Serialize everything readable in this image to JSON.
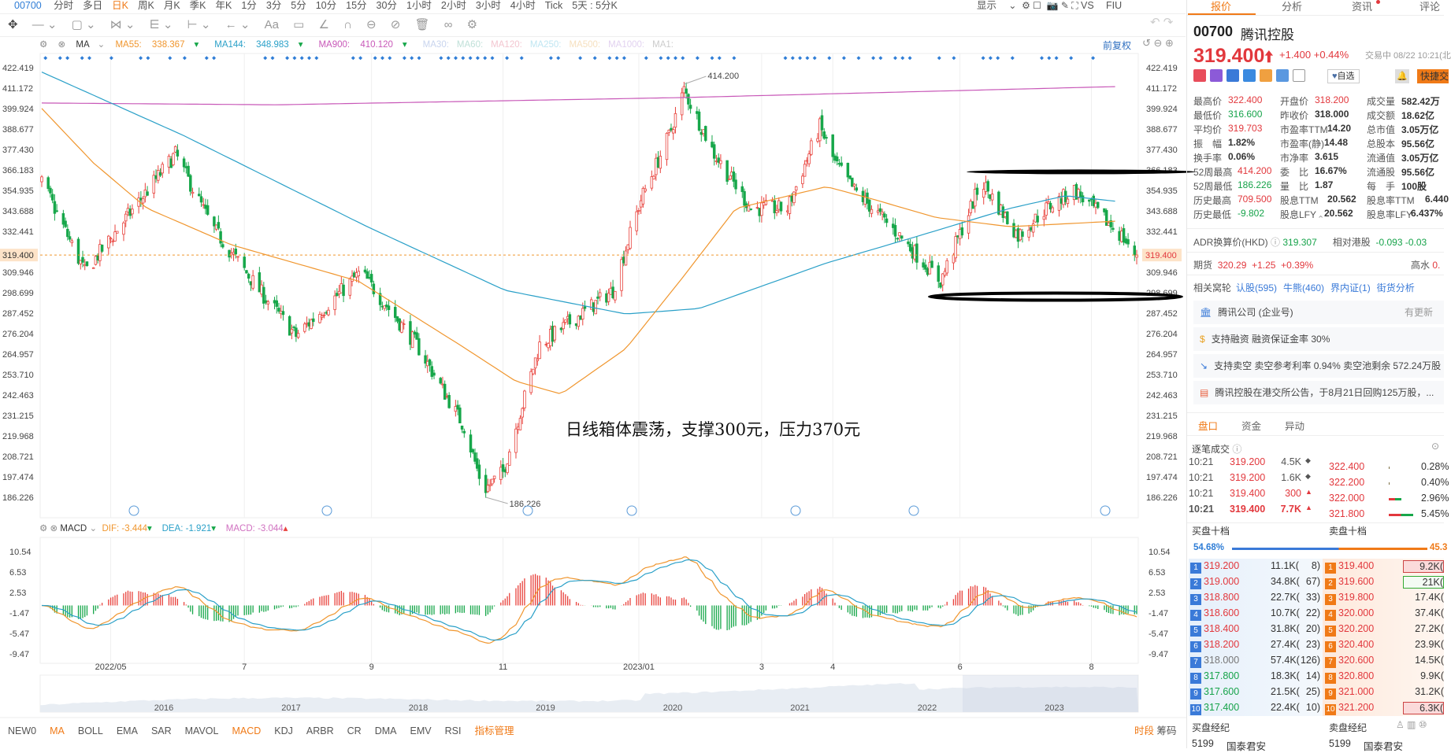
{
  "topbar": {
    "code": "00700",
    "periods": [
      "分时",
      "多日",
      "日K",
      "周K",
      "月K",
      "季K",
      "年K",
      "1分",
      "3分",
      "5分",
      "10分",
      "15分",
      "30分",
      "1小时",
      "2小时",
      "3小时",
      "4小时",
      "Tick",
      "5天 : 5分K"
    ],
    "active": "日K",
    "right": [
      "显示",
      "VS",
      "FIU"
    ]
  },
  "ma_legend": {
    "label": "MA",
    "items": [
      {
        "name": "MA55:",
        "value": "338.367",
        "color": "#f0962e"
      },
      {
        "name": "MA144:",
        "value": "348.983",
        "color": "#2aa0c8"
      },
      {
        "name": "MA900:",
        "value": "410.120",
        "color": "#c858b8"
      }
    ],
    "inactive": [
      "MA30:",
      "MA60:",
      "MA120:",
      "MA250:",
      "MA500:",
      "MA1000:",
      "MA1:"
    ],
    "adjust": "前复权"
  },
  "price_axis": [
    "422.419",
    "411.172",
    "399.924",
    "388.677",
    "377.430",
    "366.183",
    "354.935",
    "343.688",
    "332.441",
    "309.946",
    "298.699",
    "287.452",
    "276.204",
    "264.957",
    "253.710",
    "242.463",
    "231.215",
    "219.968",
    "208.721",
    "197.474",
    "186.226"
  ],
  "current_price_label": "319.400",
  "high_marker": "414.200",
  "low_marker": "186.226",
  "annotation": "日线箱体震荡，支撑300元，压力370元",
  "colors": {
    "up": "#e8413b",
    "down": "#17a74a",
    "ma55": "#f0962e",
    "ma144": "#2aa0c8",
    "ma900": "#c858b8"
  },
  "kline": {
    "start": "2022-04-01",
    "end": "2023-08-22",
    "last": 319.4,
    "path": [
      [
        "2022-04-01",
        360
      ],
      [
        "2022-04-21",
        310
      ],
      [
        "2022-06-02",
        375
      ],
      [
        "2022-06-19",
        335
      ],
      [
        "2022-07-11",
        300
      ],
      [
        "2022-07-28",
        275
      ],
      [
        "2022-08-27",
        310
      ],
      [
        "2022-09-22",
        270
      ],
      [
        "2022-10-14",
        225
      ],
      [
        "2022-10-23",
        190
      ],
      [
        "2022-11-01",
        200
      ],
      [
        "2022-11-18",
        270
      ],
      [
        "2022-12-05",
        285
      ],
      [
        "2022-12-22",
        300
      ],
      [
        "2023-01-04",
        350
      ],
      [
        "2023-01-17",
        385
      ],
      [
        "2023-01-24",
        410
      ],
      [
        "2023-02-07",
        375
      ],
      [
        "2023-02-24",
        345
      ],
      [
        "2023-03-13",
        345
      ],
      [
        "2023-03-28",
        390
      ],
      [
        "2023-04-04",
        370
      ],
      [
        "2023-04-13",
        355
      ],
      [
        "2023-05-04",
        330
      ],
      [
        "2023-05-23",
        305
      ],
      [
        "2023-06-11",
        360
      ],
      [
        "2023-06-28",
        330
      ],
      [
        "2023-07-11",
        345
      ],
      [
        "2023-07-24",
        355
      ],
      [
        "2023-08-15",
        330
      ],
      [
        "2023-08-22",
        319.4
      ]
    ],
    "ma900": [
      [
        "2022-04-01",
        403
      ],
      [
        "2022-07-19",
        402
      ],
      [
        "2023-01-24",
        406
      ],
      [
        "2023-08-12",
        412
      ]
    ],
    "ma144": [
      [
        "2022-04-01",
        420
      ],
      [
        "2022-06-06",
        385
      ],
      [
        "2022-08-30",
        335
      ],
      [
        "2022-11-02",
        300
      ],
      [
        "2022-12-28",
        287
      ],
      [
        "2023-01-31",
        290
      ],
      [
        "2023-03-31",
        315
      ],
      [
        "2023-05-13",
        330
      ],
      [
        "2023-06-24",
        345
      ],
      [
        "2023-07-20",
        352
      ],
      [
        "2023-08-12",
        349
      ]
    ],
    "ma55": [
      [
        "2022-04-01",
        400
      ],
      [
        "2022-04-25",
        370
      ],
      [
        "2022-05-20",
        345
      ],
      [
        "2022-06-28",
        325
      ],
      [
        "2022-08-26",
        305
      ],
      [
        "2022-10-12",
        270
      ],
      [
        "2022-11-07",
        250
      ],
      [
        "2022-11-28",
        243
      ],
      [
        "2022-12-28",
        268
      ],
      [
        "2023-01-22",
        305
      ],
      [
        "2023-02-17",
        345
      ],
      [
        "2023-03-31",
        357
      ],
      [
        "2023-04-22",
        350
      ],
      [
        "2023-05-21",
        340
      ],
      [
        "2023-06-24",
        335
      ],
      [
        "2023-08-12",
        338
      ]
    ],
    "box": {
      "resistance": 366,
      "support": 300
    }
  },
  "date_axis": [
    [
      "2022/05",
      "2022-05-03"
    ],
    [
      "7",
      "2022-07-04"
    ],
    [
      "9",
      "2022-09-01"
    ],
    [
      "11",
      "2022-11-01"
    ],
    [
      "2023/01",
      "2023-01-03"
    ],
    [
      "3",
      "2023-03-01"
    ],
    [
      "4",
      "2023-04-03"
    ],
    [
      "6",
      "2023-06-01"
    ],
    [
      "8",
      "2023-08-01"
    ]
  ],
  "macd": {
    "label": "MACD",
    "dif": "-3.444",
    "dea": "-1.921",
    "macd": "-3.044",
    "axis": [
      "10.54",
      "6.53",
      "2.53",
      "-1.47",
      "-5.47",
      "-9.47"
    ],
    "dif_label": "DIF:",
    "dea_label": "DEA:",
    "macd_label": "MACD:"
  },
  "navigator_years": [
    "2016",
    "2017",
    "2018",
    "2019",
    "2020",
    "2021",
    "2022",
    "2023"
  ],
  "bottom_tabs": [
    "NEW0",
    "MA",
    "BOLL",
    "EMA",
    "SAR",
    "MAVOL",
    "MACD",
    "KDJ",
    "ARBR",
    "CR",
    "DMA",
    "EMV",
    "RSI",
    "指标管理"
  ],
  "bottom_active": [
    "MA",
    "MACD",
    "指标管理"
  ],
  "bottom_right": [
    "时段",
    "筹码"
  ],
  "panel": {
    "tabs": [
      "报价",
      "分析",
      "资讯",
      "评论"
    ],
    "code": "00700",
    "name": "腾讯控股",
    "price": "319.400",
    "change": "+1.400",
    "pct": "+0.44%",
    "status": "交易中 08/22 10:21(北",
    "watch": "自选",
    "quick": "快捷交",
    "stats": [
      [
        [
          "最高价",
          "322.400",
          "red"
        ],
        [
          "开盘价",
          "318.200",
          "red"
        ],
        [
          "成交量",
          "582.42万",
          "b"
        ]
      ],
      [
        [
          "最低价",
          "316.600",
          "green"
        ],
        [
          "昨收价",
          "318.000",
          ""
        ],
        [
          "成交额",
          "18.62亿",
          "b"
        ]
      ],
      [
        [
          "平均价",
          "319.703",
          "red"
        ],
        [
          "市盈率TTM",
          "14.20",
          "b"
        ],
        [
          "总市值",
          "3.05万亿",
          "b"
        ]
      ],
      [
        [
          "振　幅",
          "1.82%",
          "b"
        ],
        [
          "市盈率(静)",
          "14.48",
          "b"
        ],
        [
          "总股本",
          "95.56亿",
          "b"
        ]
      ],
      [
        [
          "换手率",
          "0.06%",
          "b"
        ],
        [
          "市净率",
          "3.615",
          "b"
        ],
        [
          "流通值",
          "3.05万亿",
          "b"
        ]
      ],
      [
        [
          "52周最高",
          "414.200",
          "red"
        ],
        [
          "委　比",
          "16.67%",
          "b"
        ],
        [
          "流通股",
          "95.56亿",
          "b"
        ]
      ],
      [
        [
          "52周最低",
          "186.226",
          "green"
        ],
        [
          "量　比",
          "1.87",
          "b"
        ],
        [
          "每　手",
          "100股",
          "b"
        ]
      ],
      [
        [
          "历史最高",
          "709.500",
          "red"
        ],
        [
          "股息TTM",
          "20.562",
          "b"
        ],
        [
          "股息率TTM",
          "6.440",
          "b"
        ]
      ],
      [
        [
          "历史最低",
          "-9.802",
          "green"
        ],
        [
          "股息LFY",
          "20.562",
          "b"
        ],
        [
          "股息率LFY",
          "6.437%",
          "b"
        ]
      ]
    ],
    "adr": {
      "label": "ADR换算价(HKD)",
      "value": "319.307",
      "rel_label": "相对港股",
      "rel": "-0.093",
      "rel_pct": "-0.03"
    },
    "futures": {
      "label": "期货",
      "value": "320.29",
      "chg": "+1.25",
      "pct": "+0.39%",
      "premium_label": "高水",
      "premium": "0."
    },
    "warrants": {
      "label": "相关窝轮",
      "links": [
        "认股(595)",
        "牛熊(460)",
        "界内证(1)",
        "街货分析"
      ]
    },
    "cards": [
      {
        "text": "腾讯公司 (企业号)",
        "extra": "有更新"
      },
      {
        "text": "支持融资 融资保证金率 30%"
      },
      {
        "text": "支持卖空 卖空参考利率 0.94% 卖空池剩余 572.24万股"
      },
      {
        "text": "腾讯控股在港交所公告，于8月21日回购125万股，..."
      }
    ],
    "sub_tabs": [
      "盘口",
      "资金",
      "异动"
    ],
    "ticks_title": "逐笔成交",
    "ticks": [
      [
        "10:21",
        "319.200",
        "4.5K",
        "◆"
      ],
      [
        "10:21",
        "319.200",
        "1.6K",
        "◆"
      ],
      [
        "10:21",
        "319.400",
        "300",
        "▲"
      ],
      [
        "10:21",
        "319.400",
        "7.7K",
        "▲"
      ]
    ],
    "dist": [
      [
        "322.400",
        "0.28%"
      ],
      [
        "322.200",
        "0.40%"
      ],
      [
        "322.000",
        "2.96%"
      ],
      [
        "321.800",
        "5.45%"
      ]
    ],
    "bid_title": "买盘十档",
    "ask_title": "卖盘十档",
    "bid_ratio": "54.68%",
    "ask_ratio": "45.3",
    "bid_fraction": 0.5468,
    "bids": [
      [
        "319.200",
        "11.1K(",
        "8)",
        "red"
      ],
      [
        "319.000",
        "34.8K(",
        "67)",
        "red"
      ],
      [
        "318.800",
        "22.7K(",
        "33)",
        "red"
      ],
      [
        "318.600",
        "10.7K(",
        "22)",
        "red"
      ],
      [
        "318.400",
        "31.8K(",
        "20)",
        "red"
      ],
      [
        "318.200",
        "27.4K(",
        "23)",
        "red"
      ],
      [
        "318.000",
        "57.4K(",
        "126)",
        "gray"
      ],
      [
        "317.800",
        "18.3K(",
        "14)",
        "green"
      ],
      [
        "317.600",
        "21.5K(",
        "25)",
        "green"
      ],
      [
        "317.400",
        "22.4K(",
        "10)",
        "green"
      ]
    ],
    "asks": [
      [
        "319.400",
        "9.2K("
      ],
      [
        "319.600",
        "21K("
      ],
      [
        "319.800",
        "17.4K("
      ],
      [
        "320.000",
        "37.4K("
      ],
      [
        "320.200",
        "27.2K("
      ],
      [
        "320.400",
        "23.9K("
      ],
      [
        "320.600",
        "14.5K("
      ],
      [
        "320.800",
        "9.9K("
      ],
      [
        "321.000",
        "31.2K("
      ],
      [
        "321.200",
        "6.3K("
      ]
    ],
    "broker_bid": "买盘经纪",
    "broker_ask": "卖盘经纪",
    "broker_rows": [
      [
        "5199",
        "国泰君安"
      ],
      [
        "5199",
        "国泰君安"
      ]
    ]
  }
}
